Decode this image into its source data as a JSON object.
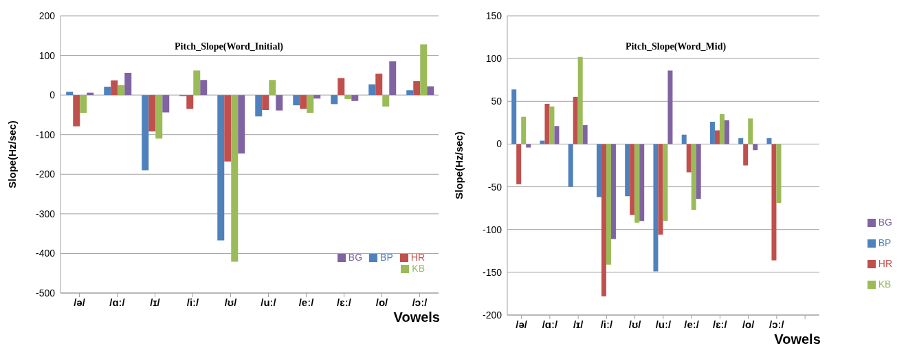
{
  "chart_data": [
    {
      "type": "bar",
      "title": "Pitch_Slope(Word_Initial)",
      "xlabel": "Vowels",
      "ylabel": "Slope(Hz/sec)",
      "categories": [
        "/ə/",
        "/ɑː/",
        "/ɪ/",
        "/iː/",
        "/ʊ/",
        "/uː/",
        "/eː/",
        "/ɛː/",
        "/o/",
        "/ɔː/"
      ],
      "series": [
        {
          "name": "BP",
          "color": "#4f81bd",
          "values": [
            8,
            21,
            -190,
            -3,
            -367,
            -54,
            -26,
            -23,
            27,
            12
          ]
        },
        {
          "name": "HR",
          "color": "#c0504d",
          "values": [
            -79,
            37,
            -92,
            -35,
            -168,
            -38,
            -35,
            43,
            54,
            35
          ]
        },
        {
          "name": "KB",
          "color": "#9bbb59",
          "values": [
            -45,
            25,
            -110,
            62,
            -421,
            38,
            -45,
            -10,
            -29,
            128
          ]
        },
        {
          "name": "BG",
          "color": "#8064a2",
          "values": [
            6,
            56,
            -44,
            38,
            -148,
            -39,
            -9,
            -15,
            85,
            22
          ]
        }
      ],
      "ylim": [
        -500,
        200
      ],
      "yticks": [
        -500,
        -400,
        -300,
        -200,
        -100,
        0,
        100,
        200
      ],
      "grid": "y",
      "legend": "bottom right"
    },
    {
      "type": "bar",
      "title": "Pitch_Slope(Word_Mid)",
      "xlabel": "Vowels",
      "ylabel": "Slope(Hz/sec)",
      "categories": [
        "/ə/",
        "/ɑː/",
        "/ɪ/",
        "/iː/",
        "/ʊ/",
        "/uː/",
        "/eː/",
        "/ɛː/",
        "/o/",
        "/ɔː/",
        null
      ],
      "series": [
        {
          "name": "BP",
          "color": "#4f81bd",
          "values": [
            64,
            4,
            -50,
            -62,
            -61,
            -149,
            11,
            26,
            7,
            7,
            null
          ]
        },
        {
          "name": "HR",
          "color": "#c0504d",
          "values": [
            -47,
            47,
            55,
            -178,
            -83,
            -106,
            -33,
            16,
            -25,
            -136,
            null
          ]
        },
        {
          "name": "KB",
          "color": "#9bbb59",
          "values": [
            32,
            44,
            102,
            -141,
            -92,
            -90,
            -77,
            35,
            30,
            -69,
            null
          ]
        },
        {
          "name": "BG",
          "color": "#8064a2",
          "values": [
            -4,
            21,
            22,
            -111,
            -90,
            86,
            -64,
            28,
            -7,
            null,
            null
          ]
        }
      ],
      "ylim": [
        -200,
        150
      ],
      "yticks": [
        -200,
        -150,
        -100,
        -50,
        0,
        50,
        100,
        150
      ],
      "grid": "y",
      "legend": "right"
    }
  ]
}
